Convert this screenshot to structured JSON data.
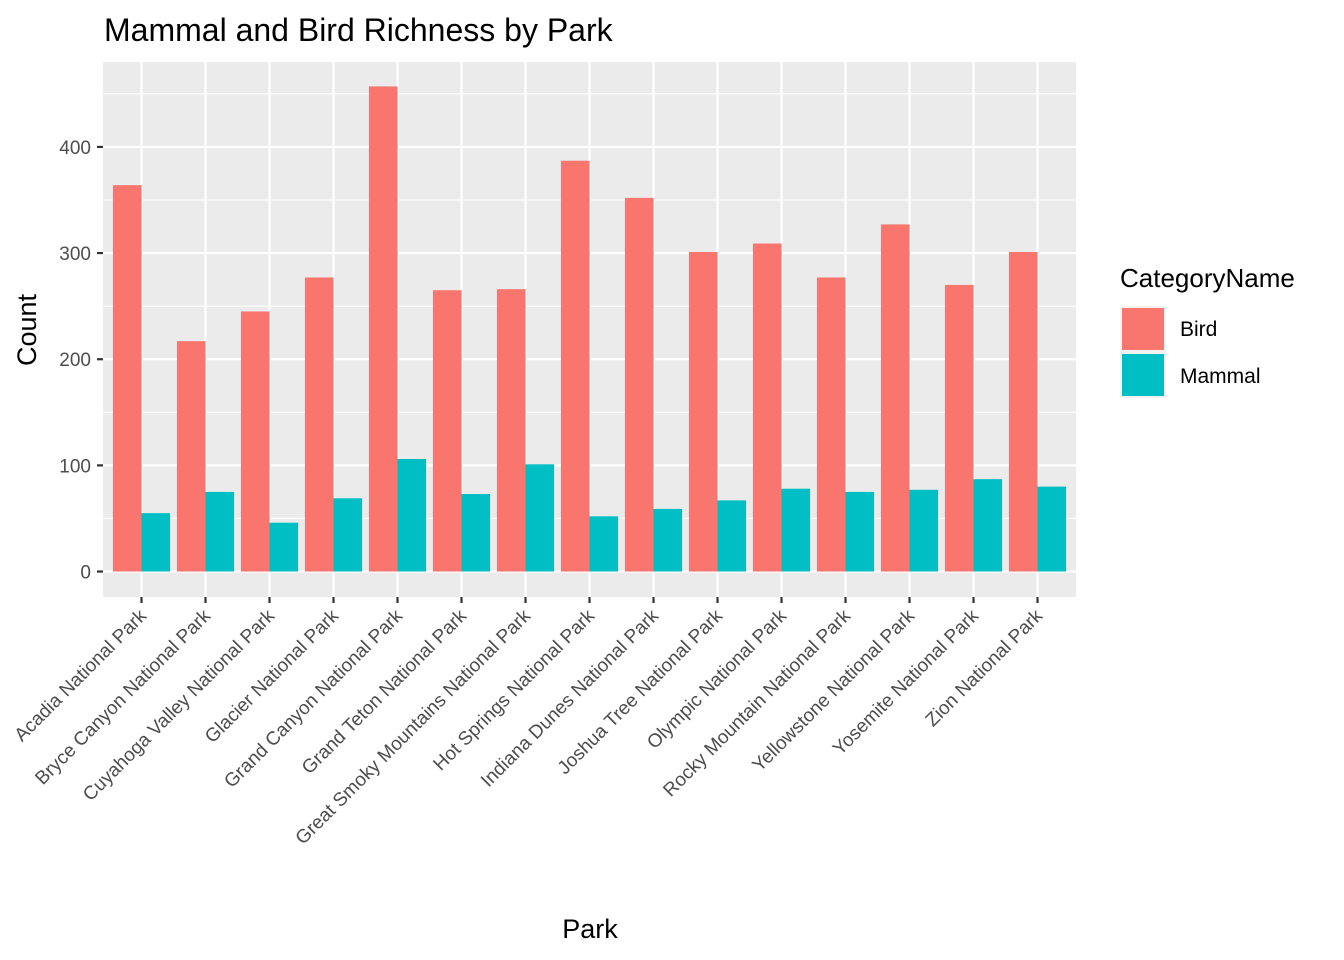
{
  "chart_data": {
    "type": "bar",
    "title": "Mammal and Bird Richness by Park",
    "xlabel": "Park",
    "ylabel": "Count",
    "ylim": [
      -24,
      480
    ],
    "yticks": [
      0,
      100,
      200,
      300,
      400
    ],
    "categories": [
      "Acadia National Park",
      "Bryce Canyon National Park",
      "Cuyahoga Valley National Park",
      "Glacier National Park",
      "Grand Canyon National Park",
      "Grand Teton National Park",
      "Great Smoky Mountains National Park",
      "Hot Springs National Park",
      "Indiana Dunes National Park",
      "Joshua Tree National Park",
      "Olympic National Park",
      "Rocky Mountain National Park",
      "Yellowstone National Park",
      "Yosemite National Park",
      "Zion National Park"
    ],
    "series": [
      {
        "name": "Bird",
        "color": "#F8766D",
        "values": [
          364,
          217,
          245,
          277,
          457,
          265,
          266,
          387,
          352,
          301,
          309,
          277,
          327,
          270,
          301
        ]
      },
      {
        "name": "Mammal",
        "color": "#00BFC4",
        "values": [
          55,
          75,
          46,
          69,
          106,
          73,
          101,
          52,
          59,
          67,
          78,
          75,
          77,
          87,
          80
        ]
      }
    ],
    "grid": true,
    "legend": {
      "title": "CategoryName",
      "placement": "right"
    },
    "panel_background": "#EBEBEB",
    "grid_color": "#FFFFFF"
  }
}
